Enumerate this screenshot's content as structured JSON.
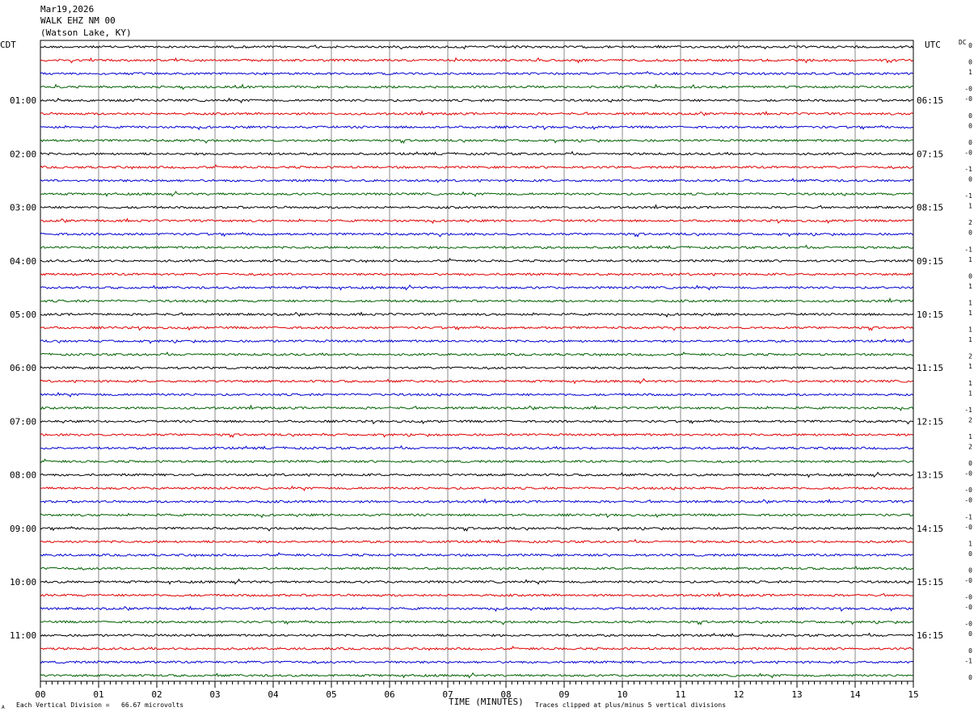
{
  "header": {
    "date": "Mar19,2026",
    "station": "WALK EHZ NM 00",
    "location": "(Watson Lake, KY)"
  },
  "left_axis_label": "CDT",
  "right_axis_label": "UTC",
  "dc_label": "DC",
  "footer": {
    "scale_note": "Each Vertical Division =   66.67 microvolts",
    "clip_note": "Traces clipped at plus/minus 5 vertical divisions",
    "corner_mark": "A"
  },
  "colors": {
    "trace_cycle": [
      "#000000",
      "#e00000",
      "#0000d0",
      "#006000"
    ],
    "grid": "#888888"
  },
  "chart_data": {
    "type": "line",
    "xlabel": "TIME (MINUTES)",
    "x_ticks": [
      "00",
      "01",
      "02",
      "03",
      "04",
      "05",
      "06",
      "07",
      "08",
      "09",
      "10",
      "11",
      "12",
      "13",
      "14",
      "15"
    ],
    "xlim": [
      0,
      15
    ],
    "cdt_labels": [
      "01:00",
      "02:00",
      "03:00",
      "04:00",
      "05:00",
      "06:00",
      "07:00",
      "08:00",
      "09:00",
      "10:00",
      "11:00"
    ],
    "utc_labels": [
      "06:15",
      "07:15",
      "08:15",
      "09:15",
      "10:15",
      "11:15",
      "12:15",
      "13:15",
      "14:15",
      "15:15",
      "16:15"
    ],
    "trace_count": 48,
    "dc_offsets": [
      "0",
      "0",
      "1",
      "-0",
      "-0",
      "0",
      "0",
      "0",
      "-0",
      "-1",
      "0",
      "-1",
      "1",
      "2",
      "0",
      "-1",
      "1",
      "0",
      "1",
      "1",
      "1",
      "1",
      "1",
      "2",
      "1",
      "1",
      "1",
      "-1",
      "2",
      "1",
      "2",
      "0",
      "-0",
      "-0",
      "-0",
      "-1",
      "-0",
      "1",
      "0",
      "0",
      "-0",
      "-0",
      "-0",
      "-0",
      "0",
      "0",
      "-1",
      "0"
    ]
  }
}
